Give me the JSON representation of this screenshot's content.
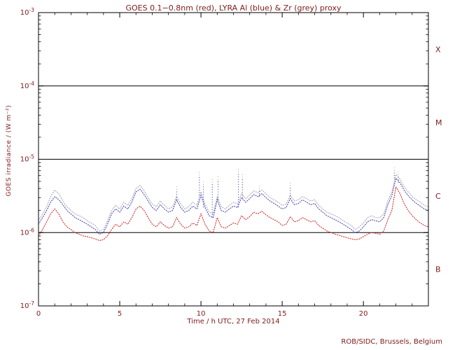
{
  "header": {
    "title": "GOES 0.1−0.8nm (red), LYRA Al (blue) & Zr (grey) proxy"
  },
  "footer": {
    "credit": "ROB/SIDC, Brussels, Belgium"
  },
  "colors": {
    "text": "#7e1a1a",
    "frame": "#000000",
    "goes_red": "#cc2222",
    "lyra_al_blue": "#4343b6",
    "lyra_zr_grey": "#a6a6b0"
  },
  "chart_data": {
    "type": "line",
    "title": "GOES 0.1-0.8nm (red), LYRA Al (blue) & Zr (grey) proxy",
    "xlabel": "Time / h UTC, 27 Feb 2014",
    "ylabel": "GOES irradiance / (W m⁻²)",
    "x_range": [
      0,
      24
    ],
    "x_major_ticks": [
      0,
      5,
      10,
      15,
      20
    ],
    "x_minor_step": 1,
    "y_scale": "log",
    "y_tick_base": "10",
    "y_tick_exponents": [
      -3,
      -4,
      -5,
      -6,
      -7
    ],
    "class_boundaries_exp": [
      -4,
      -5,
      -6
    ],
    "flare_classes": [
      {
        "label": "X",
        "mid_exp": -3.5
      },
      {
        "label": "M",
        "mid_exp": -4.5
      },
      {
        "label": "C",
        "mid_exp": -5.5
      },
      {
        "label": "B",
        "mid_exp": -6.5
      }
    ],
    "x_start": 0,
    "x_step": 0.25,
    "units": "1e-6 W m^-2",
    "series": [
      {
        "name": "LYRA Zr proxy",
        "color_key": "lyra_zr_grey",
        "values": [
          1.45,
          1.8,
          2.25,
          3.1,
          3.8,
          3.4,
          2.7,
          2.25,
          2.0,
          1.8,
          1.7,
          1.6,
          1.45,
          1.35,
          1.25,
          1.05,
          1.1,
          1.45,
          2.0,
          2.35,
          2.1,
          2.6,
          2.35,
          2.9,
          4.0,
          4.4,
          3.7,
          3.0,
          2.45,
          2.25,
          2.7,
          2.35,
          2.1,
          2.25,
          3.1,
          2.45,
          2.1,
          2.25,
          2.6,
          2.35,
          3.6,
          2.45,
          1.9,
          1.8,
          3.1,
          2.25,
          2.1,
          2.35,
          2.6,
          2.45,
          3.4,
          2.9,
          3.25,
          3.7,
          3.5,
          3.8,
          3.4,
          3.0,
          2.8,
          2.6,
          2.35,
          2.45,
          3.25,
          2.7,
          2.8,
          3.1,
          2.9,
          2.7,
          2.8,
          2.35,
          2.1,
          1.9,
          1.8,
          1.7,
          1.6,
          1.45,
          1.35,
          1.25,
          1.1,
          1.2,
          1.35,
          1.6,
          1.7,
          1.6,
          1.6,
          1.8,
          2.7,
          3.6,
          6.2,
          5.4,
          4.25,
          3.6,
          3.1,
          2.8,
          2.6,
          2.35,
          2.25
        ]
      },
      {
        "name": "LYRA Al proxy",
        "color_key": "lyra_al_blue",
        "values": [
          1.3,
          1.6,
          2.0,
          2.6,
          3.1,
          2.8,
          2.4,
          2.0,
          1.8,
          1.6,
          1.5,
          1.4,
          1.3,
          1.2,
          1.1,
          0.95,
          1.0,
          1.3,
          1.8,
          2.1,
          1.9,
          2.3,
          2.1,
          2.6,
          3.6,
          3.9,
          3.3,
          2.7,
          2.2,
          2.0,
          2.4,
          2.1,
          1.9,
          2.0,
          2.8,
          2.2,
          1.9,
          2.0,
          2.3,
          2.1,
          3.2,
          2.2,
          1.7,
          1.6,
          2.8,
          2.0,
          1.9,
          2.1,
          2.3,
          2.2,
          3.0,
          2.6,
          2.9,
          3.3,
          3.1,
          3.4,
          3.0,
          2.7,
          2.5,
          2.3,
          2.1,
          2.2,
          2.9,
          2.4,
          2.5,
          2.8,
          2.6,
          2.4,
          2.5,
          2.1,
          1.9,
          1.7,
          1.6,
          1.5,
          1.4,
          1.3,
          1.2,
          1.1,
          1.0,
          1.05,
          1.2,
          1.4,
          1.5,
          1.45,
          1.4,
          1.6,
          2.4,
          3.2,
          5.5,
          4.8,
          3.8,
          3.2,
          2.8,
          2.5,
          2.3,
          2.1,
          2.0
        ]
      },
      {
        "name": "GOES 0.1-0.8nm",
        "color_key": "goes_red",
        "values": [
          0.9,
          1.1,
          1.4,
          1.8,
          2.1,
          1.8,
          1.4,
          1.2,
          1.1,
          1.0,
          0.95,
          0.9,
          0.88,
          0.85,
          0.82,
          0.78,
          0.8,
          0.9,
          1.1,
          1.3,
          1.2,
          1.4,
          1.3,
          1.6,
          2.1,
          2.3,
          2.0,
          1.6,
          1.3,
          1.2,
          1.4,
          1.25,
          1.15,
          1.2,
          1.6,
          1.3,
          1.15,
          1.2,
          1.35,
          1.25,
          1.8,
          1.3,
          1.05,
          1.0,
          1.6,
          1.2,
          1.15,
          1.25,
          1.35,
          1.3,
          1.7,
          1.5,
          1.65,
          1.9,
          1.8,
          1.95,
          1.75,
          1.6,
          1.5,
          1.4,
          1.25,
          1.3,
          1.65,
          1.4,
          1.45,
          1.6,
          1.5,
          1.4,
          1.45,
          1.25,
          1.15,
          1.05,
          1.0,
          0.95,
          0.92,
          0.88,
          0.85,
          0.82,
          0.8,
          0.82,
          0.88,
          0.95,
          1.0,
          0.98,
          0.95,
          1.05,
          1.5,
          2.0,
          4.2,
          3.4,
          2.5,
          2.0,
          1.7,
          1.5,
          1.35,
          1.25,
          1.2
        ]
      }
    ],
    "spikes": [
      {
        "x": 8.5,
        "peak": 4.5
      },
      {
        "x": 9.9,
        "peak": 7.0
      },
      {
        "x": 10.15,
        "peak": 5.0
      },
      {
        "x": 10.7,
        "peak": 5.5
      },
      {
        "x": 11.05,
        "peak": 6.0
      },
      {
        "x": 12.3,
        "peak": 7.5
      },
      {
        "x": 12.55,
        "peak": 6.3
      },
      {
        "x": 13.6,
        "peak": 4.6
      },
      {
        "x": 15.5,
        "peak": 4.8
      },
      {
        "x": 21.9,
        "peak": 8.0
      },
      {
        "x": 22.15,
        "peak": 7.0
      }
    ]
  }
}
